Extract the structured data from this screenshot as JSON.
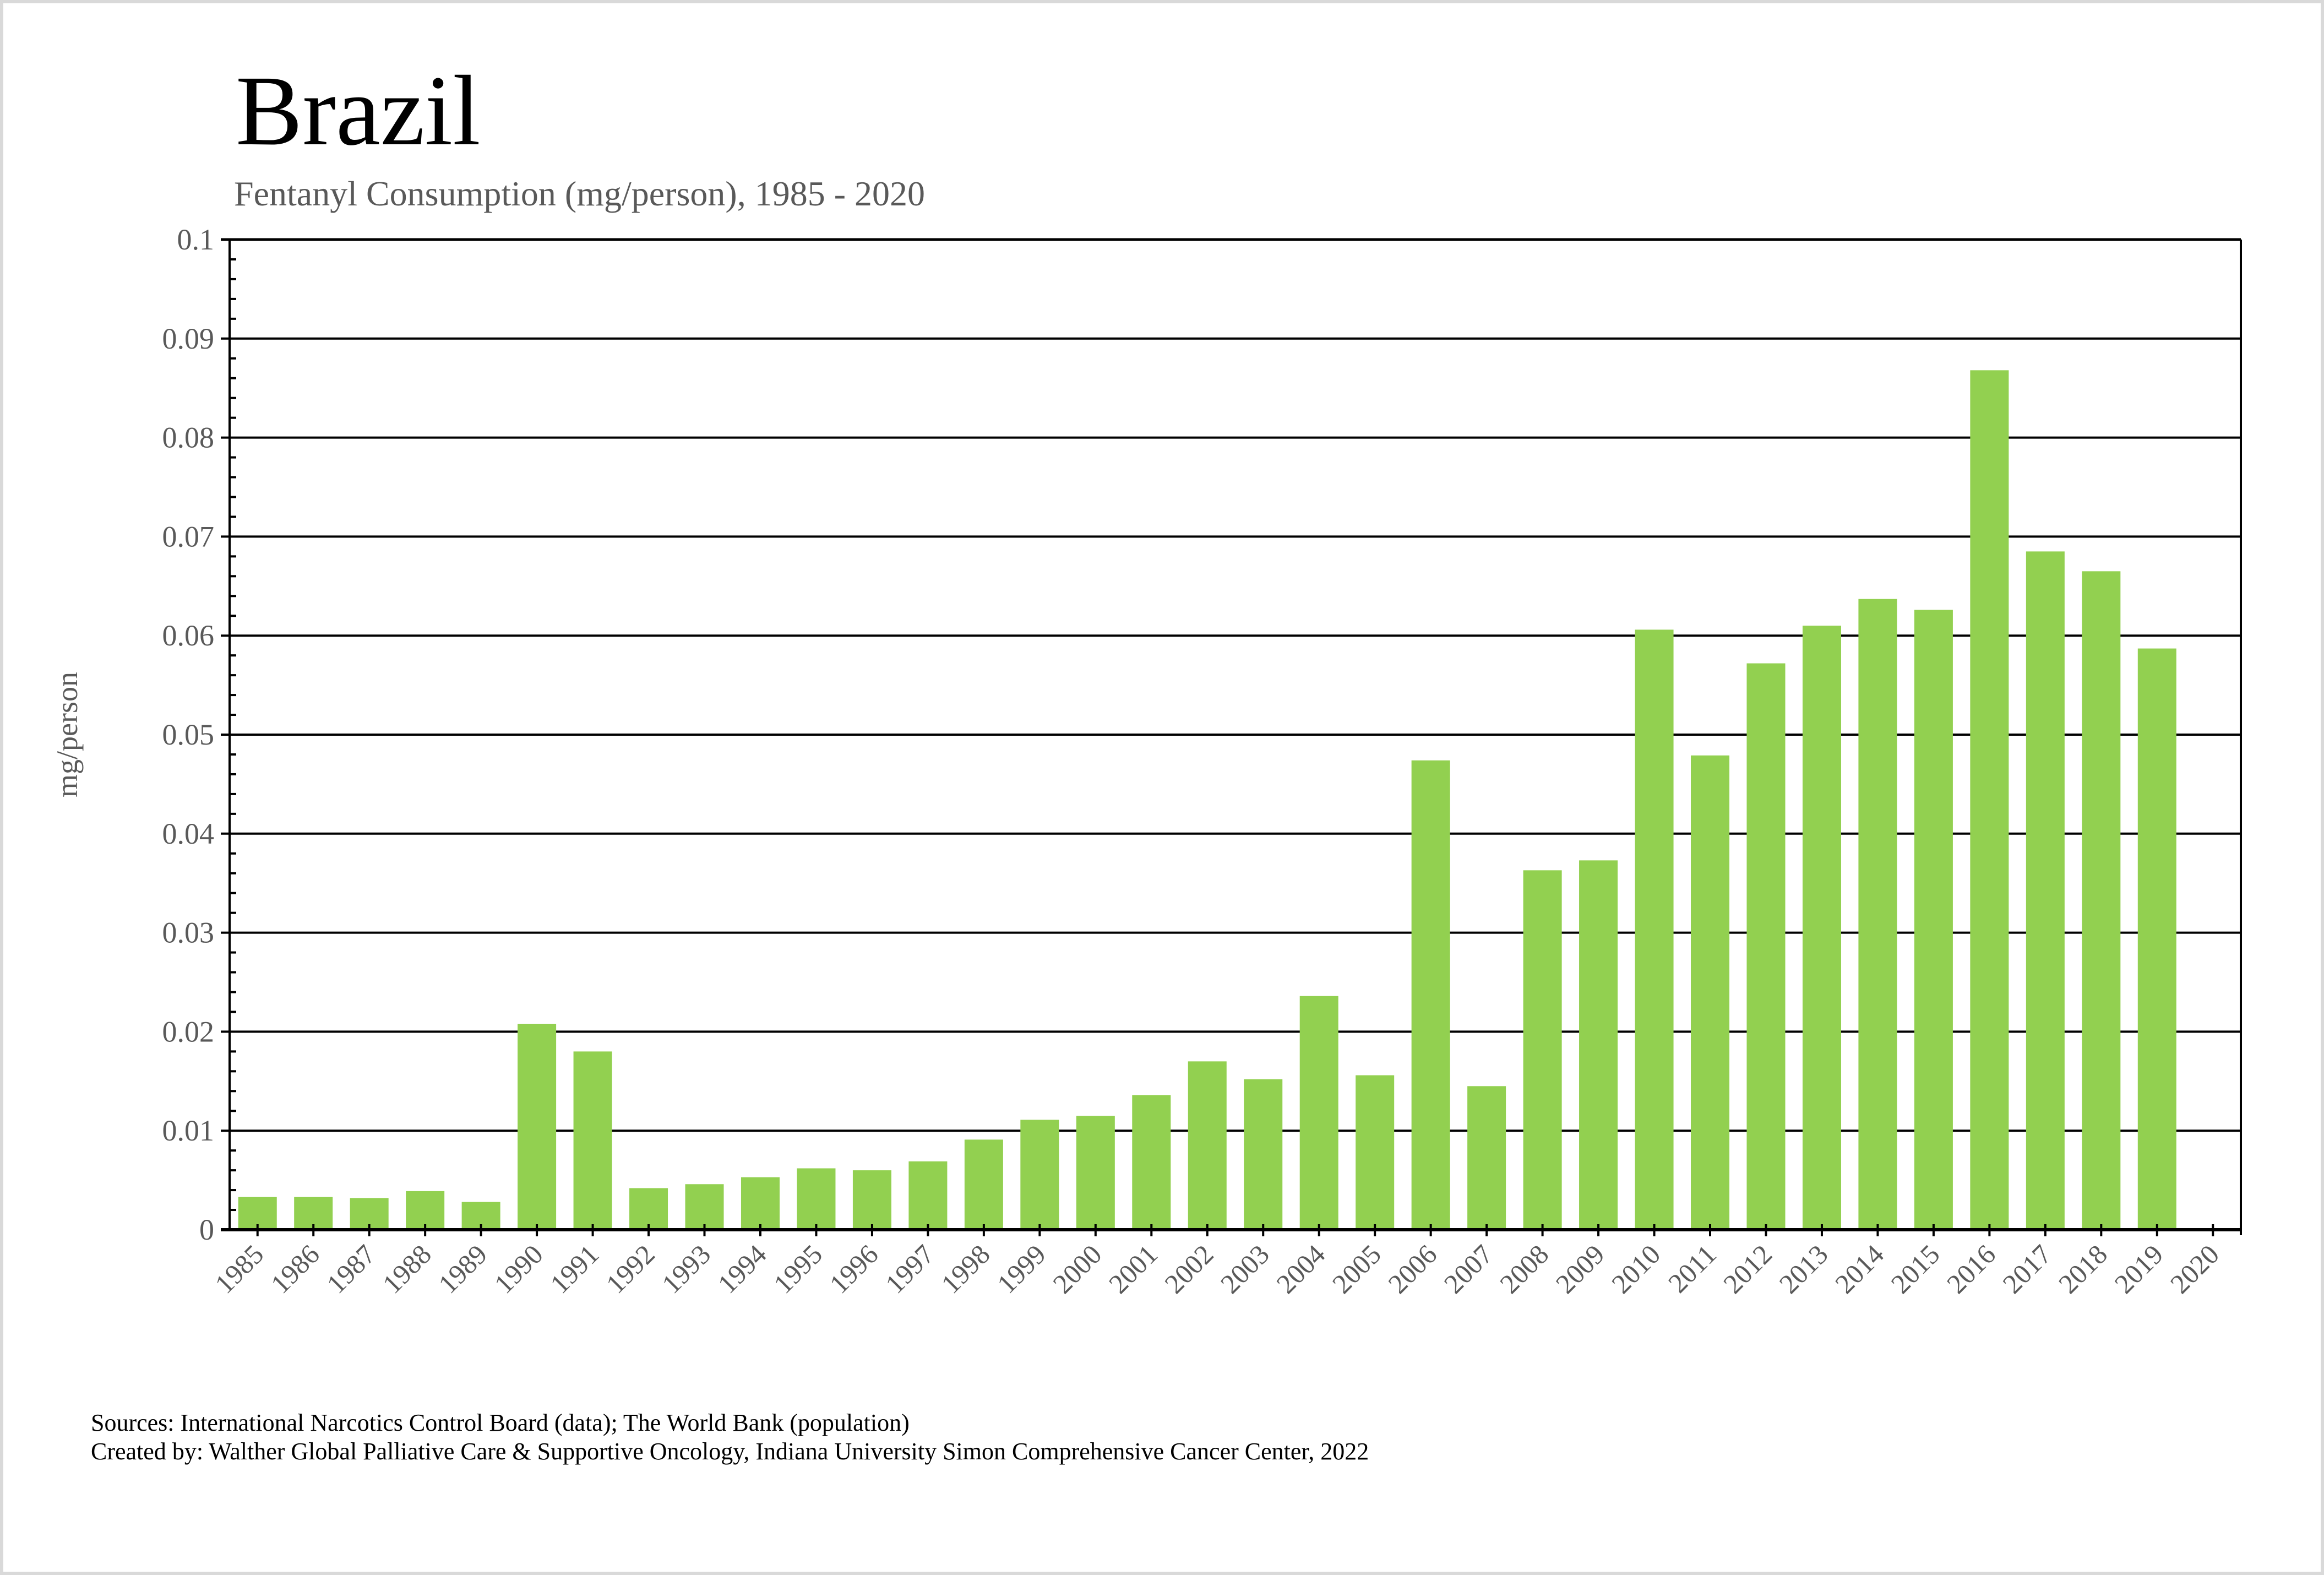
{
  "chart_data": {
    "type": "bar",
    "title": "Brazil",
    "subtitle": "Fentanyl Consumption (mg/person), 1985 - 2020",
    "xlabel": "",
    "ylabel": "mg/person",
    "ylim": [
      0,
      0.1
    ],
    "yticks": [
      0,
      0.01,
      0.02,
      0.03,
      0.04,
      0.05,
      0.06,
      0.07,
      0.08,
      0.09,
      0.1
    ],
    "ytick_labels": [
      "0",
      "0.01",
      "0.02",
      "0.03",
      "0.04",
      "0.05",
      "0.06",
      "0.07",
      "0.08",
      "0.09",
      "0.1"
    ],
    "minor_tick_step": 0.002,
    "grid": true,
    "legend": "none",
    "bar_color": "#92D050",
    "categories": [
      "1985",
      "1986",
      "1987",
      "1988",
      "1989",
      "1990",
      "1991",
      "1992",
      "1993",
      "1994",
      "1995",
      "1996",
      "1997",
      "1998",
      "1999",
      "2000",
      "2001",
      "2002",
      "2003",
      "2004",
      "2005",
      "2006",
      "2007",
      "2008",
      "2009",
      "2010",
      "2011",
      "2012",
      "2013",
      "2014",
      "2015",
      "2016",
      "2017",
      "2018",
      "2019",
      "2020"
    ],
    "values": [
      0.0033,
      0.0033,
      0.0032,
      0.0039,
      0.0028,
      0.0208,
      0.018,
      0.0042,
      0.0046,
      0.0053,
      0.0062,
      0.006,
      0.0069,
      0.0091,
      0.0111,
      0.0115,
      0.0136,
      0.017,
      0.0152,
      0.0236,
      0.0156,
      0.0474,
      0.0145,
      0.0363,
      0.0373,
      0.0606,
      0.0479,
      0.0572,
      0.061,
      0.0637,
      0.0626,
      0.0868,
      0.0685,
      0.0665,
      0.0587,
      null
    ]
  },
  "footer": {
    "sources": "Sources: International Narcotics Control Board (data); The World Bank (population)",
    "created_by": "Created by: Walther Global Palliative Care & Supportive Oncology, Indiana University Simon Comprehensive Cancer Center, 2022"
  }
}
